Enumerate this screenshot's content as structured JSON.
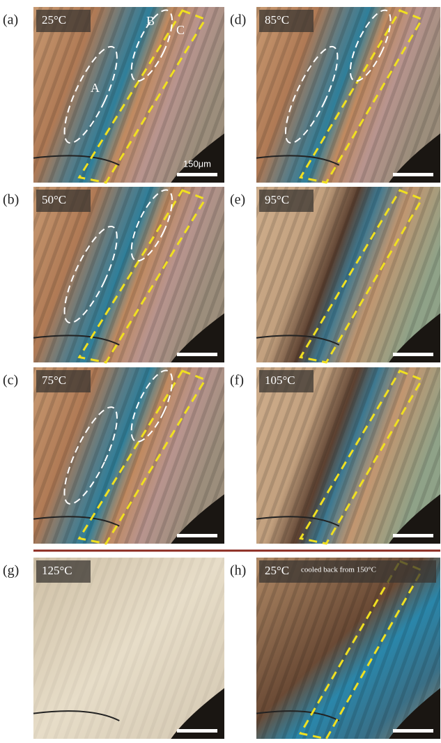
{
  "panels": [
    {
      "label": "(a)",
      "temperature": "25°C",
      "region_labels": [
        "A",
        "B",
        "C"
      ],
      "scale_bar": "150μm"
    },
    {
      "label": "(b)",
      "temperature": "50°C"
    },
    {
      "label": "(c)",
      "temperature": "75°C"
    },
    {
      "label": "(d)",
      "temperature": "85°C"
    },
    {
      "label": "(e)",
      "temperature": "95°C"
    },
    {
      "label": "(f)",
      "temperature": "105°C"
    },
    {
      "label": "(g)",
      "temperature": "125°C"
    },
    {
      "label": "(h)",
      "temperature": "25°C",
      "caption": "cooled back from 150°C"
    }
  ]
}
